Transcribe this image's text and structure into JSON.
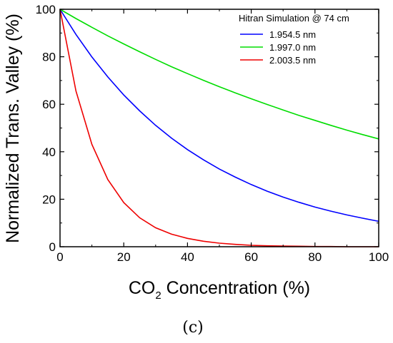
{
  "chart_data": {
    "type": "line",
    "title": "",
    "xlabel": {
      "prefix": "CO",
      "subscript": "2",
      "suffix": " Concentration (%)"
    },
    "ylabel": "Normalized Trans. Valley (%)",
    "xlim": [
      0,
      100
    ],
    "ylim": [
      0,
      100
    ],
    "x_ticks": [
      "0",
      "20",
      "40",
      "60",
      "80",
      "100"
    ],
    "y_ticks": [
      "0",
      "20",
      "40",
      "60",
      "80",
      "100"
    ],
    "grid": false,
    "legend": {
      "title": "Hitran Simulation @ 74 cm",
      "placement": "top-right"
    },
    "x": [
      0,
      5,
      10,
      15,
      20,
      25,
      30,
      35,
      40,
      45,
      50,
      55,
      60,
      65,
      70,
      75,
      80,
      85,
      90,
      95,
      100
    ],
    "series": [
      {
        "name": "1.954.5 nm",
        "color": "#0000ff",
        "values": [
          100,
          89.4,
          79.9,
          71.5,
          63.9,
          57.2,
          51.1,
          45.7,
          40.9,
          36.6,
          32.7,
          29.3,
          26.2,
          23.4,
          20.9,
          18.7,
          16.7,
          15.0,
          13.4,
          12.0,
          10.7
        ]
      },
      {
        "name": "1.997.0 nm",
        "color": "#00dd00",
        "values": [
          100,
          96.1,
          92.4,
          88.8,
          85.4,
          82.1,
          78.9,
          75.8,
          72.9,
          70.1,
          67.4,
          64.8,
          62.3,
          59.9,
          57.6,
          55.3,
          53.2,
          51.1,
          49.1,
          47.2,
          45.4
        ]
      },
      {
        "name": "2.003.5 nm",
        "color": "#ee0000",
        "values": [
          100,
          65.6,
          43.1,
          28.3,
          18.6,
          12.2,
          8.0,
          5.3,
          3.5,
          2.3,
          1.5,
          1.0,
          0.6,
          0.4,
          0.3,
          0.2,
          0.1,
          0.1,
          0.0,
          0.0,
          0.0
        ]
      }
    ]
  },
  "figure": {
    "panel_label": "(c)"
  }
}
